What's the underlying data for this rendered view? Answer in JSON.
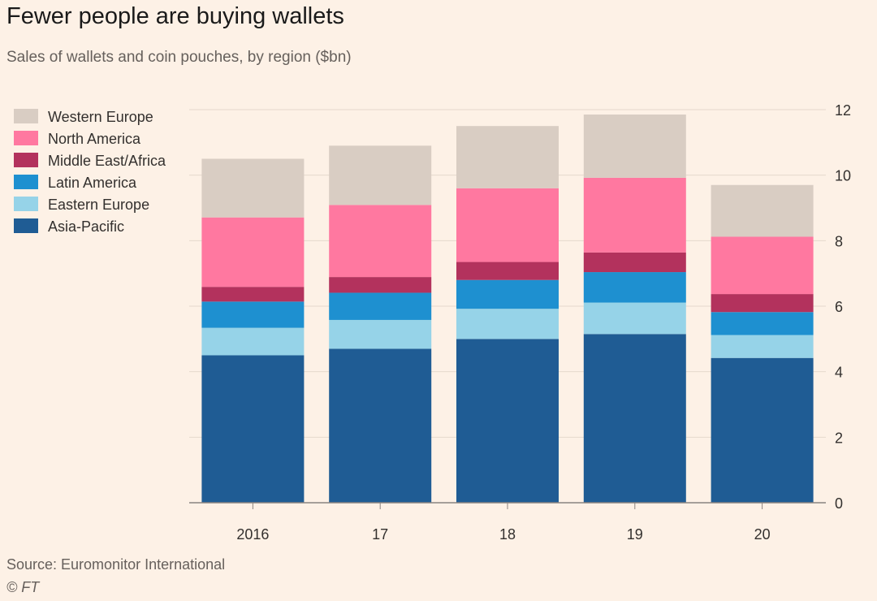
{
  "title": "Fewer people are buying wallets",
  "subtitle": "Sales of wallets and coin pouches, by region ($bn)",
  "source": "Source: Euromonitor International",
  "credit": "© FT",
  "chart_data": {
    "type": "bar",
    "stacked": true,
    "categories": [
      "2016",
      "17",
      "18",
      "19",
      "20"
    ],
    "series": [
      {
        "name": "Asia-Pacific",
        "color": "#1f5c94",
        "values": [
          4.5,
          4.7,
          5.0,
          5.15,
          4.42
        ]
      },
      {
        "name": "Eastern Europe",
        "color": "#96d3e8",
        "values": [
          0.84,
          0.88,
          0.92,
          0.96,
          0.7
        ]
      },
      {
        "name": "Latin America",
        "color": "#1e90d0",
        "values": [
          0.8,
          0.83,
          0.88,
          0.93,
          0.7
        ]
      },
      {
        "name": "Middle East/Africa",
        "color": "#b3325d",
        "values": [
          0.45,
          0.48,
          0.55,
          0.6,
          0.55
        ]
      },
      {
        "name": "North America",
        "color": "#ff78a0",
        "values": [
          2.12,
          2.2,
          2.25,
          2.28,
          1.75
        ]
      },
      {
        "name": "Western Europe",
        "color": "#d9cdc3",
        "values": [
          1.79,
          1.81,
          1.9,
          1.93,
          1.58
        ]
      }
    ],
    "legend_order": [
      "Western Europe",
      "North America",
      "Middle East/Africa",
      "Latin America",
      "Eastern Europe",
      "Asia-Pacific"
    ],
    "legend_position": "top-left",
    "yaxis_side": "right",
    "ylim": [
      0,
      12
    ],
    "yticks": [
      0,
      2,
      4,
      6,
      8,
      10,
      12
    ],
    "grid": true,
    "xlabel": "",
    "ylabel": ""
  }
}
